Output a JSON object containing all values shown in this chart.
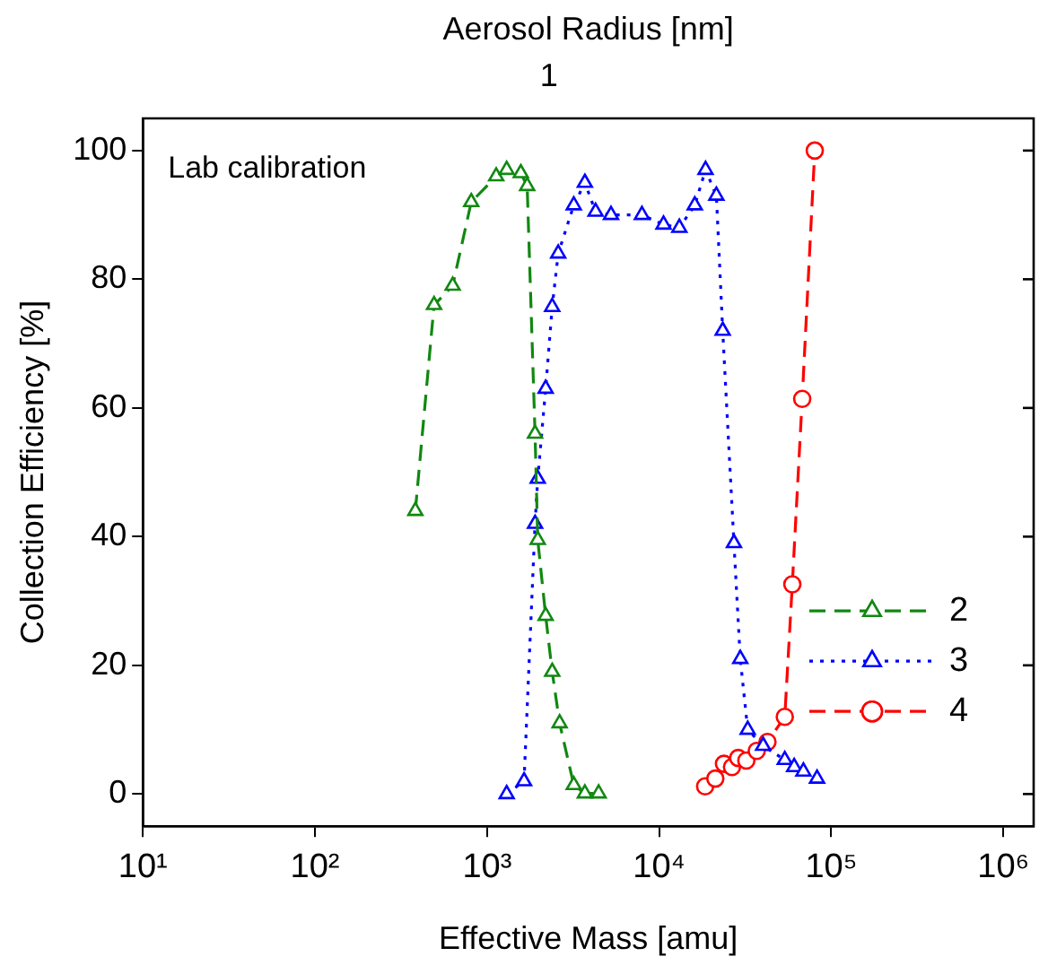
{
  "chart_data": {
    "type": "line",
    "xlabel": "Effective Mass [amu]",
    "ylabel": "Collection Efficiency [%]",
    "x2label": "Aerosol Radius [nm]",
    "annotations": [
      "Lab calibration",
      "1"
    ],
    "log": "x",
    "xlim": [
      10,
      1500000
    ],
    "xticks": [
      {
        "value": 10,
        "label": "10¹"
      },
      {
        "value": 100,
        "label": "10²"
      },
      {
        "value": 1000,
        "label": "10³"
      },
      {
        "value": 10000,
        "label": "10⁴"
      },
      {
        "value": 100000,
        "label": "10⁵"
      },
      {
        "value": 1000000,
        "label": "10⁶"
      }
    ],
    "ylim": [
      -5,
      105
    ],
    "yticks": [
      0,
      20,
      40,
      60,
      80,
      100
    ],
    "legend": "bottom right",
    "series": [
      {
        "name": "2",
        "color": "#118811",
        "marker": "triangle",
        "line_style": "dashed",
        "x": [
          383,
          492,
          631,
          809,
          1130,
          1300,
          1570,
          1710,
          1900,
          1970,
          2190,
          2390,
          2640,
          3190,
          3700,
          4450
        ],
        "values": [
          44,
          76,
          79,
          92,
          96,
          97,
          96.5,
          94.5,
          56,
          39.5,
          27.7,
          19,
          11,
          1.4,
          0.1,
          0.1
        ]
      },
      {
        "name": "3",
        "color": "#0000ff",
        "marker": "triangle",
        "line_style": "dotted",
        "x": [
          1300,
          1640,
          1900,
          1970,
          2190,
          2390,
          2590,
          3190,
          3700,
          4270,
          5250,
          7940,
          10600,
          13100,
          16100,
          18600,
          21500,
          23400,
          27200,
          29600,
          32700,
          40200,
          53700,
          60900,
          68900,
          82700
        ],
        "values": [
          0,
          2,
          42,
          49,
          63,
          75.7,
          84,
          91.5,
          95,
          90.5,
          90,
          90,
          88.5,
          88,
          91.5,
          97,
          93,
          72,
          39,
          21,
          10,
          7.5,
          5.3,
          4.2,
          3.5,
          2.4
        ]
      },
      {
        "name": "4",
        "color": "#ff0000",
        "marker": "circle",
        "line_style": "dashed",
        "x": [
          18500,
          21200,
          23800,
          26500,
          28800,
          32100,
          36900,
          42600,
          53700,
          59400,
          67800,
          80200
        ],
        "values": [
          1.2,
          2.4,
          4.7,
          4.2,
          5.6,
          5.2,
          6.7,
          8.1,
          12,
          32.6,
          61.4,
          100
        ]
      }
    ]
  }
}
